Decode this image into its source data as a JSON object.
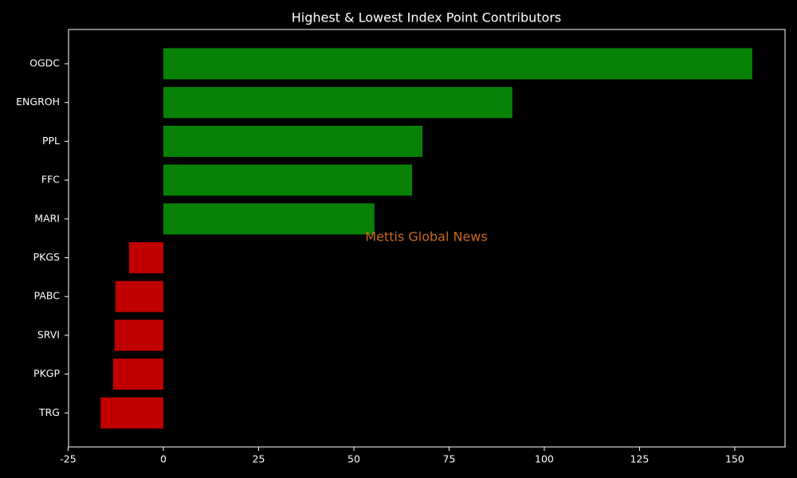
{
  "chart_data": {
    "type": "barh",
    "title": "Highest & Lowest Index Point Contributors",
    "categories": [
      "OGDC",
      "ENGROH",
      "PPL",
      "FFC",
      "MARI",
      "PKGS",
      "PABC",
      "SRVI",
      "PKGP",
      "TRG"
    ],
    "values": [
      154.6,
      91.6,
      68.0,
      65.3,
      55.4,
      -9.0,
      -12.6,
      -12.8,
      -13.2,
      -16.5
    ],
    "colors": [
      "#078207",
      "#078207",
      "#078207",
      "#078207",
      "#078207",
      "#c00000",
      "#c00000",
      "#c00000",
      "#c00000",
      "#c00000"
    ],
    "xlim": [
      -24.9,
      163.2
    ],
    "xticks": [
      -25,
      0,
      25,
      50,
      75,
      100,
      125,
      150
    ],
    "annotation": "Mettis Global News"
  }
}
